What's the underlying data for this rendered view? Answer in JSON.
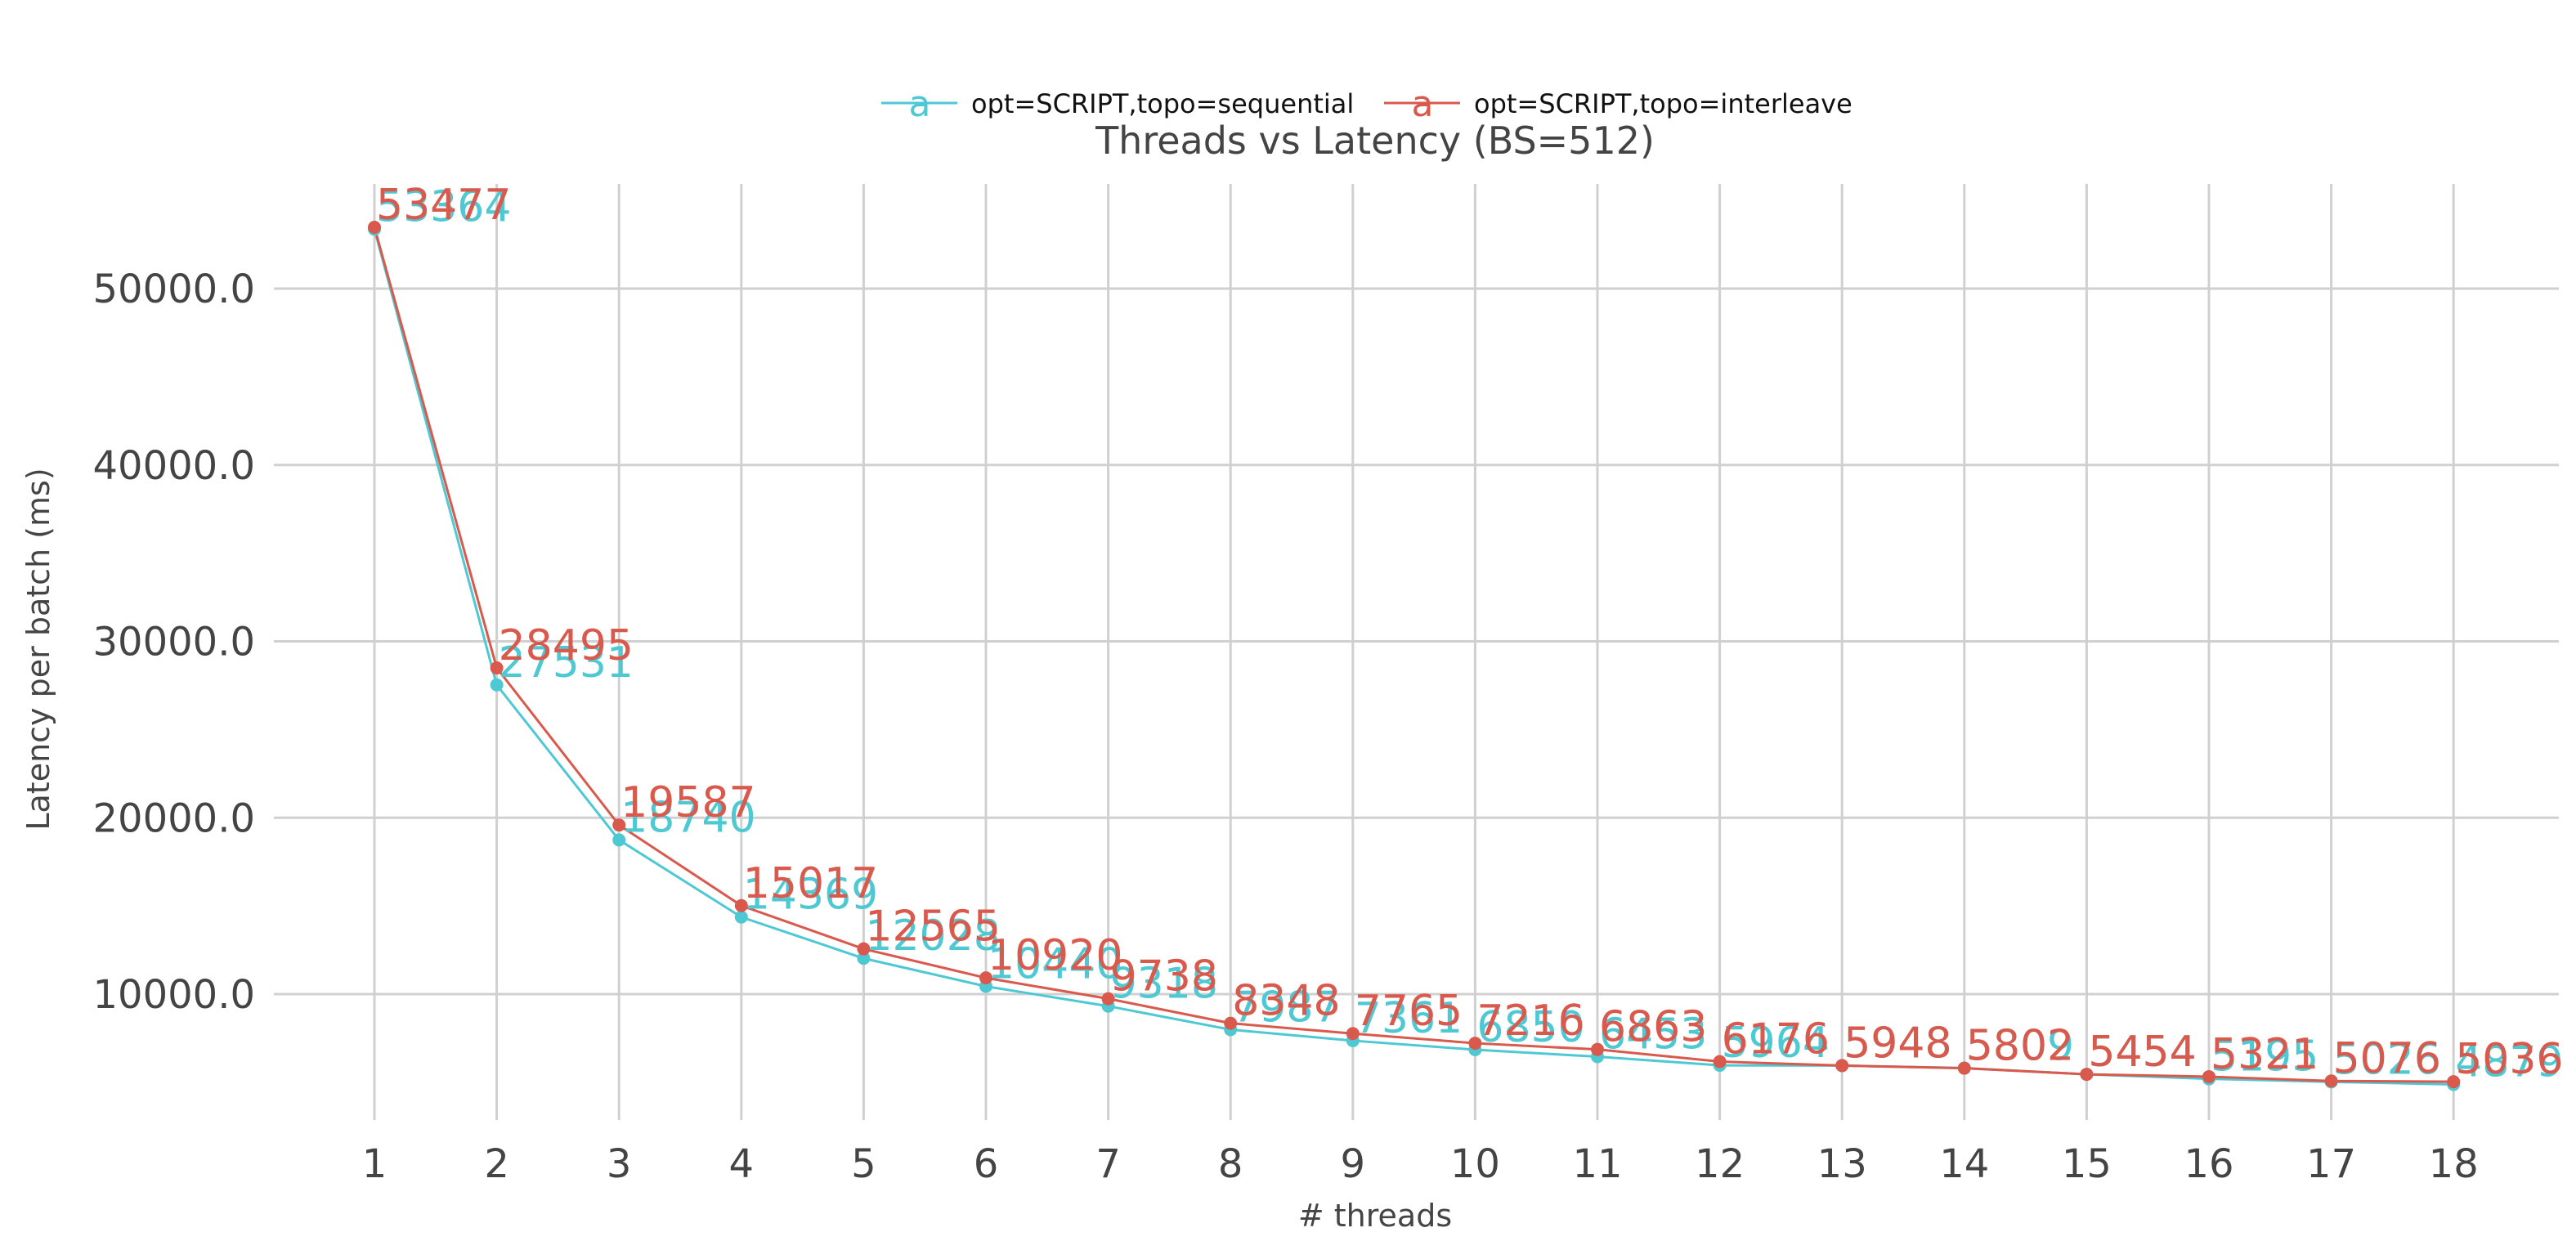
{
  "chart_data": {
    "type": "line",
    "title": "Threads vs Latency (BS=512)",
    "xlabel": "# threads",
    "ylabel": "Latency per batch (ms)",
    "x": [
      1,
      2,
      3,
      4,
      5,
      6,
      7,
      8,
      9,
      10,
      11,
      12,
      13,
      14,
      15,
      16,
      17,
      18
    ],
    "xlim": [
      1,
      18.85
    ],
    "ylim": [
      3000,
      56000
    ],
    "yticks": [
      10000,
      20000,
      30000,
      40000,
      50000
    ],
    "ytick_labels": [
      "10000.0",
      "20000.0",
      "30000.0",
      "40000.0",
      "50000.0"
    ],
    "xtick_labels": [
      "1",
      "2",
      "3",
      "4",
      "5",
      "6",
      "7",
      "8",
      "9",
      "10",
      "11",
      "12",
      "13",
      "14",
      "15",
      "16",
      "17",
      "18"
    ],
    "grid": true,
    "legend_position": "top-center",
    "legend_marker": "a",
    "series": [
      {
        "name": "opt=SCRIPT,topo=sequential",
        "color": "#4ec9d4",
        "values": [
          53364,
          27531,
          18740,
          14369,
          12028,
          10440,
          9318,
          7987,
          7361,
          6850,
          6453,
          5964,
          5948,
          5809,
          5454,
          5195,
          5026,
          4879
        ]
      },
      {
        "name": "opt=SCRIPT,topo=interleave",
        "color": "#d9594c",
        "values": [
          53477,
          28495,
          19587,
          15017,
          12565,
          10920,
          9738,
          8348,
          7765,
          7216,
          6863,
          6176,
          5948,
          5802,
          5454,
          5321,
          5076,
          5036
        ]
      }
    ]
  }
}
